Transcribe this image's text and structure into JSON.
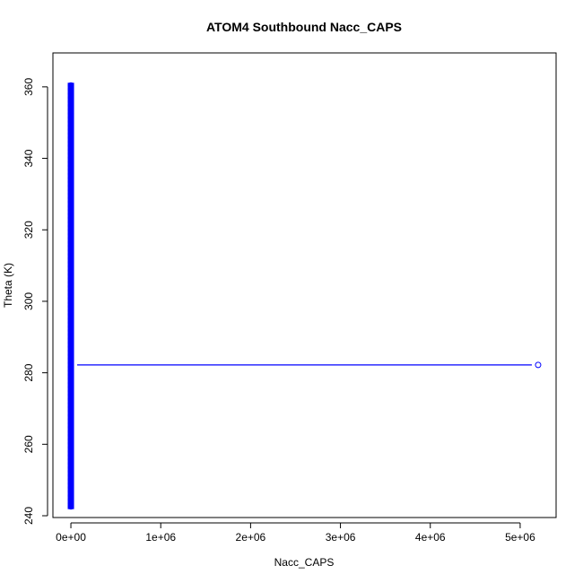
{
  "chart_data": {
    "type": "scatter",
    "title": "ATOM4 Southbound Nacc_CAPS",
    "xlabel": "Nacc_CAPS",
    "ylabel": "Theta (K)",
    "xlim": [
      -200000,
      5400000
    ],
    "ylim": [
      239.5,
      369.5
    ],
    "x_ticks": [
      0,
      1000000,
      2000000,
      3000000,
      4000000,
      5000000
    ],
    "x_tick_labels": [
      "0e+00",
      "1e+06",
      "2e+06",
      "3e+06",
      "4e+06",
      "5e+06"
    ],
    "y_ticks": [
      240,
      260,
      280,
      300,
      320,
      340,
      360
    ],
    "y_tick_labels": [
      "240",
      "260",
      "280",
      "300",
      "320",
      "340",
      "360"
    ],
    "grid": false,
    "legend": "none",
    "series_color": "#0000ff",
    "points": [
      [
        0,
        242.6
      ],
      [
        0,
        243.4
      ],
      [
        0,
        244.5
      ],
      [
        0,
        245.6
      ],
      [
        0,
        246.8
      ],
      [
        0,
        247.9
      ],
      [
        0,
        249.0
      ],
      [
        0,
        250.1
      ],
      [
        0,
        251.3
      ],
      [
        0,
        252.4
      ],
      [
        0,
        253.5
      ],
      [
        0,
        254.6
      ],
      [
        0,
        255.8
      ],
      [
        0,
        256.9
      ],
      [
        0,
        258.0
      ],
      [
        0,
        259.1
      ],
      [
        0,
        260.3
      ],
      [
        0,
        261.4
      ],
      [
        0,
        262.5
      ],
      [
        0,
        263.6
      ],
      [
        0,
        264.8
      ],
      [
        0,
        265.9
      ],
      [
        0,
        267.0
      ],
      [
        0,
        268.1
      ],
      [
        0,
        269.3
      ],
      [
        0,
        270.4
      ],
      [
        0,
        271.5
      ],
      [
        0,
        272.6
      ],
      [
        0,
        273.8
      ],
      [
        0,
        274.9
      ],
      [
        0,
        276.0
      ],
      [
        0,
        277.1
      ],
      [
        0,
        278.3
      ],
      [
        0,
        279.4
      ],
      [
        0,
        280.5
      ],
      [
        0,
        281.6
      ],
      [
        0,
        282.8
      ],
      [
        0,
        283.9
      ],
      [
        0,
        285.0
      ],
      [
        0,
        286.1
      ],
      [
        0,
        287.3
      ],
      [
        0,
        288.4
      ],
      [
        0,
        289.5
      ],
      [
        0,
        290.6
      ],
      [
        0,
        291.8
      ],
      [
        0,
        292.9
      ],
      [
        0,
        294.0
      ],
      [
        0,
        295.1
      ],
      [
        0,
        296.3
      ],
      [
        0,
        297.4
      ],
      [
        0,
        298.5
      ],
      [
        0,
        299.6
      ],
      [
        0,
        300.8
      ],
      [
        0,
        301.9
      ],
      [
        0,
        303.0
      ],
      [
        0,
        304.1
      ],
      [
        0,
        305.3
      ],
      [
        0,
        306.4
      ],
      [
        0,
        307.5
      ],
      [
        0,
        308.6
      ],
      [
        0,
        309.8
      ],
      [
        0,
        310.9
      ],
      [
        0,
        312.0
      ],
      [
        0,
        313.1
      ],
      [
        0,
        314.3
      ],
      [
        0,
        315.4
      ],
      [
        0,
        316.5
      ],
      [
        0,
        317.6
      ],
      [
        0,
        318.8
      ],
      [
        0,
        319.9
      ],
      [
        0,
        321.0
      ],
      [
        0,
        322.1
      ],
      [
        0,
        323.3
      ],
      [
        0,
        324.4
      ],
      [
        0,
        325.5
      ],
      [
        0,
        326.6
      ],
      [
        0,
        327.8
      ],
      [
        0,
        328.9
      ],
      [
        0,
        330.0
      ],
      [
        0,
        331.1
      ],
      [
        0,
        332.3
      ],
      [
        0,
        333.4
      ],
      [
        0,
        334.5
      ],
      [
        0,
        335.6
      ],
      [
        0,
        336.8
      ],
      [
        0,
        337.9
      ],
      [
        0,
        339.0
      ],
      [
        0,
        340.1
      ],
      [
        0,
        341.3
      ],
      [
        0,
        342.4
      ],
      [
        0,
        343.5
      ],
      [
        0,
        344.6
      ],
      [
        0,
        345.8
      ],
      [
        0,
        346.9
      ],
      [
        0,
        348.0
      ],
      [
        0,
        349.1
      ],
      [
        0,
        350.3
      ],
      [
        0,
        351.4
      ],
      [
        0,
        352.5
      ],
      [
        0,
        353.6
      ],
      [
        0,
        354.8
      ],
      [
        0,
        355.9
      ],
      [
        0,
        357.0
      ],
      [
        0,
        358.1
      ],
      [
        0,
        359.3
      ],
      [
        0,
        360.4
      ],
      [
        5200000,
        282.2
      ]
    ],
    "segments": [
      [
        [
          0,
          282.2
        ],
        [
          5200000,
          282.2
        ]
      ]
    ]
  }
}
